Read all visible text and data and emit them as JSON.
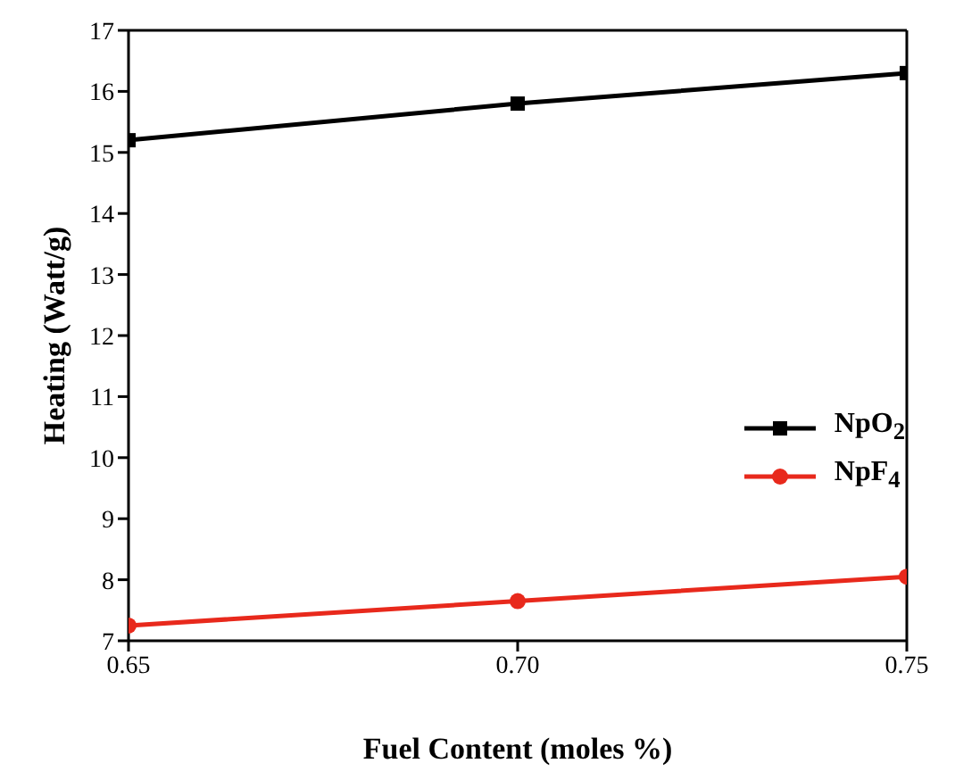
{
  "chart_data": {
    "type": "line",
    "xlabel": "Fuel Content (moles %)",
    "ylabel": "Heating (Watt/g)",
    "x": [
      0.65,
      0.7,
      0.75
    ],
    "series": [
      {
        "name": "NpO$_{2}$",
        "color": "#000000",
        "marker": "square",
        "values": [
          15.2,
          15.8,
          16.3
        ]
      },
      {
        "name": "NpF$_{4}$",
        "color": "#e8291c",
        "marker": "circle",
        "values": [
          7.25,
          7.65,
          8.05
        ]
      }
    ],
    "xlim": [
      0.65,
      0.75
    ],
    "xticks": [
      {
        "value": 0.65,
        "label": "0.65"
      },
      {
        "value": 0.7,
        "label": "0.70"
      },
      {
        "value": 0.75,
        "label": "0.75"
      }
    ],
    "ylim": [
      7,
      17
    ],
    "yticks": [
      7,
      8,
      9,
      10,
      11,
      12,
      13,
      14,
      15,
      16,
      17
    ],
    "legend": "right",
    "line_style": "solid"
  }
}
